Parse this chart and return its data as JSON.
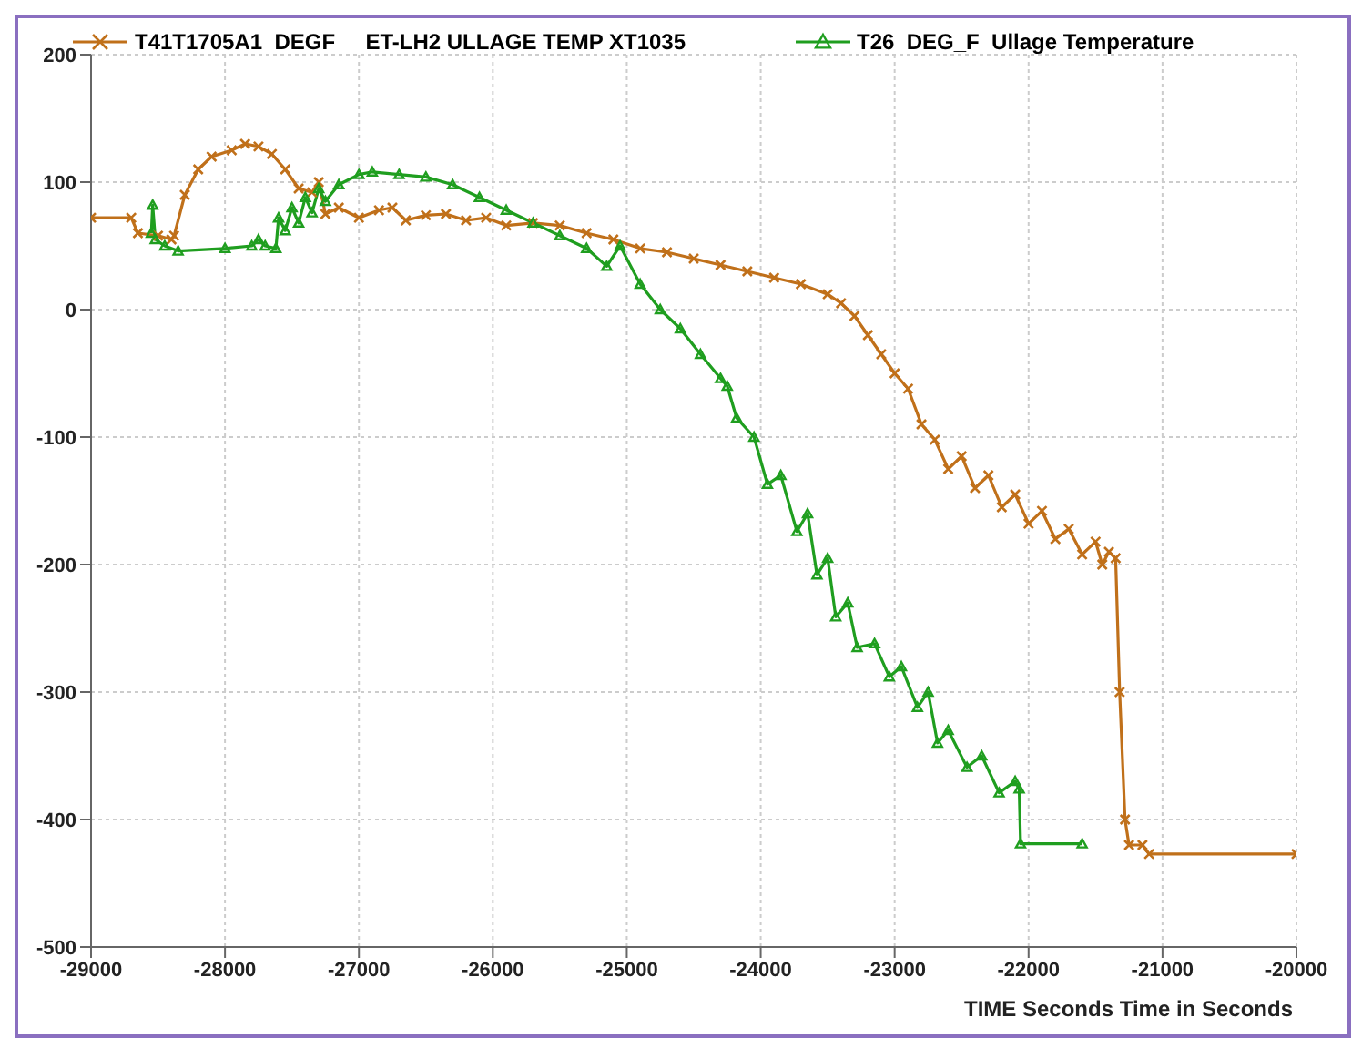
{
  "chart_data": {
    "type": "line",
    "xlabel": "TIME  Seconds  Time in Seconds",
    "xlim": [
      -29000,
      -20000
    ],
    "xticks": [
      -29000,
      -28000,
      -27000,
      -26000,
      -25000,
      -24000,
      -23000,
      -22000,
      -21000,
      -20000
    ],
    "ylim": [
      -500,
      200
    ],
    "yticks": [
      -500,
      -400,
      -300,
      -200,
      -100,
      0,
      100,
      200
    ],
    "grid": true,
    "legend": "top",
    "series": [
      {
        "name": "T41T1705A1  DEGF     ET-LH2 ULLAGE TEMP XT1035",
        "color": "#c0701a",
        "marker": "cross",
        "x": [
          -29000,
          -28700,
          -28650,
          -28500,
          -28400,
          -28380,
          -28300,
          -28200,
          -28100,
          -27950,
          -27850,
          -27750,
          -27650,
          -27550,
          -27450,
          -27350,
          -27300,
          -27250,
          -27150,
          -27000,
          -26850,
          -26750,
          -26650,
          -26500,
          -26350,
          -26200,
          -26050,
          -25900,
          -25700,
          -25500,
          -25300,
          -25100,
          -24900,
          -24700,
          -24500,
          -24300,
          -24100,
          -23900,
          -23700,
          -23500,
          -23400,
          -23300,
          -23200,
          -23100,
          -23000,
          -22900,
          -22800,
          -22700,
          -22600,
          -22500,
          -22400,
          -22300,
          -22200,
          -22100,
          -22000,
          -21900,
          -21800,
          -21700,
          -21600,
          -21500,
          -21450,
          -21400,
          -21350,
          -21320,
          -21280,
          -21250,
          -21150,
          -21100,
          -20000
        ],
        "values": [
          72,
          72,
          60,
          58,
          55,
          58,
          90,
          110,
          120,
          125,
          130,
          128,
          122,
          110,
          95,
          92,
          100,
          75,
          80,
          72,
          78,
          80,
          70,
          74,
          75,
          70,
          72,
          66,
          68,
          66,
          60,
          55,
          48,
          45,
          40,
          35,
          30,
          25,
          20,
          12,
          5,
          -5,
          -20,
          -35,
          -50,
          -62,
          -90,
          -102,
          -125,
          -115,
          -140,
          -130,
          -155,
          -145,
          -168,
          -158,
          -180,
          -172,
          -192,
          -182,
          -200,
          -190,
          -195,
          -300,
          -400,
          -420,
          -420,
          -427,
          -427
        ]
      },
      {
        "name": "T26  DEG_F  Ullage Temperature",
        "color": "#1f9e1f",
        "marker": "triangle",
        "x": [
          -28550,
          -28540,
          -28520,
          -28450,
          -28350,
          -28000,
          -27800,
          -27750,
          -27700,
          -27620,
          -27600,
          -27550,
          -27500,
          -27450,
          -27400,
          -27350,
          -27300,
          -27250,
          -27150,
          -27000,
          -26900,
          -26700,
          -26500,
          -26300,
          -26100,
          -25900,
          -25700,
          -25500,
          -25300,
          -25150,
          -25050,
          -24900,
          -24750,
          -24600,
          -24450,
          -24300,
          -24250,
          -24180,
          -24050,
          -23950,
          -23850,
          -23730,
          -23650,
          -23580,
          -23500,
          -23440,
          -23350,
          -23280,
          -23150,
          -23040,
          -22950,
          -22830,
          -22750,
          -22680,
          -22600,
          -22460,
          -22350,
          -22220,
          -22100,
          -22070,
          -22060,
          -21600
        ],
        "values": [
          60,
          82,
          55,
          50,
          46,
          48,
          50,
          55,
          50,
          48,
          72,
          62,
          80,
          68,
          88,
          76,
          95,
          85,
          98,
          106,
          108,
          106,
          104,
          98,
          88,
          78,
          68,
          58,
          48,
          34,
          50,
          20,
          0,
          -15,
          -35,
          -54,
          -60,
          -85,
          -100,
          -137,
          -130,
          -174,
          -160,
          -208,
          -195,
          -241,
          -230,
          -265,
          -262,
          -288,
          -280,
          -312,
          -300,
          -340,
          -330,
          -359,
          -350,
          -379,
          -370,
          -376,
          -419,
          -419
        ]
      }
    ]
  }
}
